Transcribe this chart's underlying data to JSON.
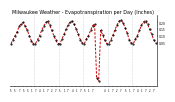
{
  "title": "Milwaukee Weather - Evapotranspiration per Day (Inches)",
  "title_fontsize": 3.5,
  "bg_color": "#ffffff",
  "line_color": "#cc0000",
  "marker_color": "#000000",
  "grid_color": "#b0b0b0",
  "x_values": [
    0,
    1,
    2,
    3,
    4,
    5,
    6,
    7,
    8,
    9,
    10,
    11,
    12,
    13,
    14,
    15,
    16,
    17,
    18,
    19,
    20,
    21,
    22,
    23,
    24,
    25,
    26,
    27,
    28,
    29,
    30,
    31,
    32,
    33,
    34,
    35,
    36,
    37,
    38,
    39,
    40,
    41,
    42,
    43,
    44,
    45,
    46,
    47,
    48,
    49,
    50,
    51,
    52,
    53,
    54,
    55,
    56,
    57,
    58,
    59,
    60,
    61,
    62,
    63,
    64,
    65,
    66,
    67,
    68,
    69,
    70,
    71
  ],
  "y_values": [
    0.04,
    0.07,
    0.1,
    0.13,
    0.17,
    0.19,
    0.2,
    0.17,
    0.14,
    0.1,
    0.06,
    0.04,
    0.04,
    0.07,
    0.1,
    0.14,
    0.17,
    0.2,
    0.21,
    0.18,
    0.14,
    0.1,
    0.065,
    0.04,
    0.04,
    0.075,
    0.11,
    0.15,
    0.18,
    0.205,
    0.21,
    0.185,
    0.15,
    0.11,
    0.07,
    0.045,
    0.04,
    0.075,
    0.1,
    0.14,
    0.175,
    0.19,
    -0.22,
    -0.24,
    0.14,
    0.105,
    0.065,
    0.04,
    0.04,
    0.07,
    0.105,
    0.145,
    0.18,
    0.21,
    0.22,
    0.195,
    0.16,
    0.12,
    0.07,
    0.045,
    0.04,
    0.075,
    0.1,
    0.14,
    0.18,
    0.205,
    0.215,
    0.185,
    0.15,
    0.11,
    0.07,
    0.045
  ],
  "ytick_values": [
    0.2,
    0.15,
    0.1,
    0.05
  ],
  "ytick_labels": [
    "0.20",
    "0.15",
    "0.10",
    "0.05"
  ],
  "ylim": [
    -0.28,
    0.26
  ],
  "xlim": [
    -0.5,
    71.5
  ],
  "vgrid_positions": [
    11.5,
    23.5,
    35.5,
    47.5,
    59.5
  ],
  "xtick_positions": [
    0,
    2,
    4,
    6,
    8,
    10,
    12,
    14,
    16,
    18,
    20,
    22,
    24,
    26,
    28,
    30,
    32,
    34,
    36,
    38,
    40,
    46,
    48,
    50,
    52,
    54,
    56,
    58,
    60,
    62,
    64,
    66,
    68,
    70
  ],
  "xtick_labels": [
    "5",
    "5",
    "7",
    "5",
    "5",
    "1",
    "7",
    "4",
    "1",
    "7",
    "2",
    "7",
    "5",
    "1",
    "7",
    "4",
    "1",
    "7",
    "5",
    "1",
    "7",
    "4",
    "1",
    "7",
    "2",
    "7",
    "5",
    "1",
    "7",
    "4",
    "1",
    "7",
    "2",
    "7"
  ]
}
